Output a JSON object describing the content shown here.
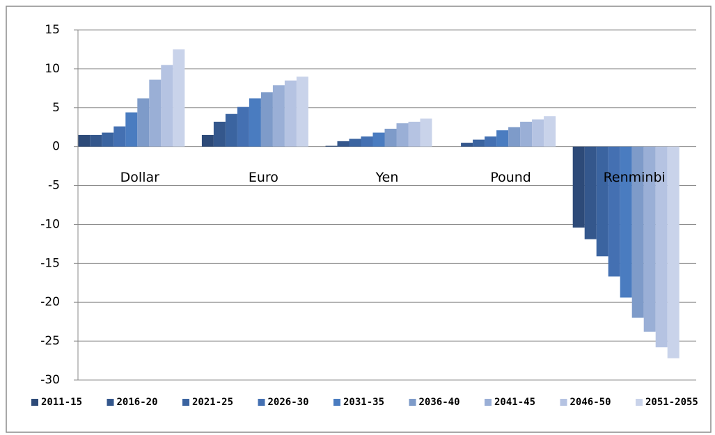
{
  "chart_data": {
    "type": "bar",
    "categories": [
      "Dollar",
      "Euro",
      "Yen",
      "Pound",
      "Renminbi"
    ],
    "series": [
      {
        "name": "2011-15",
        "color": "#2d4a78",
        "values": [
          1.5,
          1.5,
          0.1,
          0,
          -10.4
        ]
      },
      {
        "name": "2016-20",
        "color": "#34578c",
        "values": [
          1.5,
          3.2,
          0.7,
          0.5,
          -11.9
        ]
      },
      {
        "name": "2021-25",
        "color": "#3b64a0",
        "values": [
          1.8,
          4.2,
          1.0,
          0.9,
          -14.1
        ]
      },
      {
        "name": "2026-30",
        "color": "#4470b2",
        "values": [
          2.6,
          5.1,
          1.3,
          1.3,
          -16.7
        ]
      },
      {
        "name": "2031-35",
        "color": "#4a7cc0",
        "values": [
          4.4,
          6.2,
          1.8,
          2.1,
          -19.4
        ]
      },
      {
        "name": "2036-40",
        "color": "#7e9bc9",
        "values": [
          6.2,
          7.0,
          2.3,
          2.5,
          -22.0
        ]
      },
      {
        "name": "2041-45",
        "color": "#9aafd6",
        "values": [
          8.6,
          7.9,
          3.0,
          3.2,
          -23.8
        ]
      },
      {
        "name": "2046-50",
        "color": "#b5c3e2",
        "values": [
          10.5,
          8.5,
          3.2,
          3.5,
          -25.8
        ]
      },
      {
        "name": "2051-2055",
        "color": "#c9d3ea",
        "values": [
          12.5,
          9.0,
          3.6,
          3.9,
          -27.2
        ]
      }
    ],
    "ylim": [
      -30,
      15
    ],
    "yticks": [
      -30,
      -25,
      -20,
      -15,
      -10,
      -5,
      0,
      5,
      10,
      15
    ],
    "grid": true
  }
}
